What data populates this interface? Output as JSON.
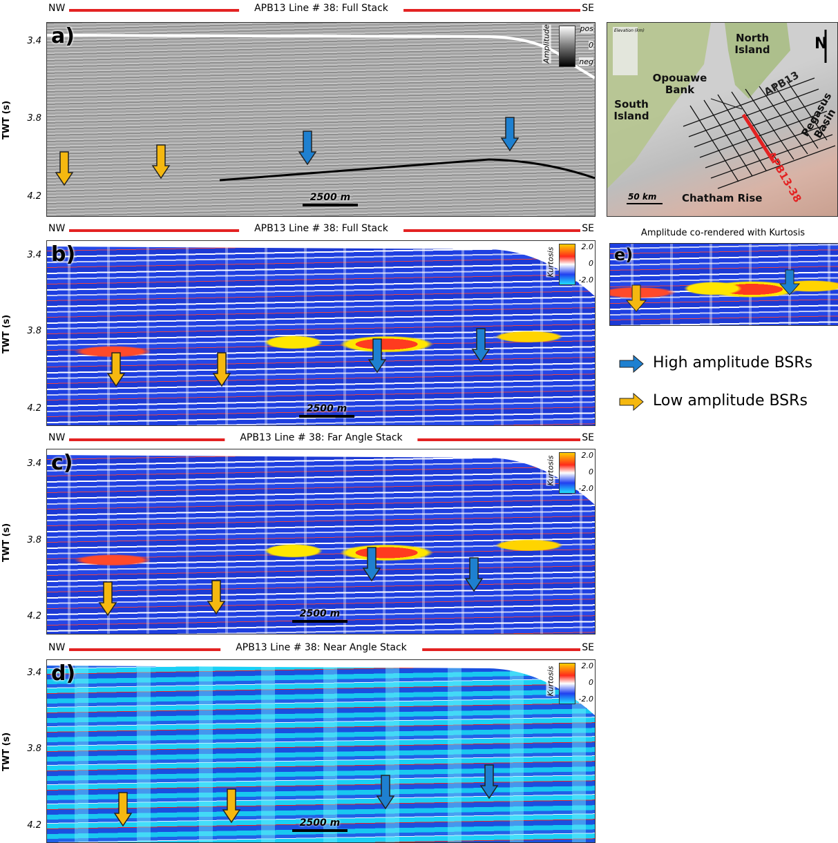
{
  "panels": [
    {
      "label": "a)",
      "header": {
        "left": "NW",
        "title": "APB13 Line # 38: Full Stack",
        "right": "SE"
      },
      "y_axis_label": "TWT (s)",
      "yticks": [
        "3.4",
        "3.8",
        "4.2"
      ],
      "scale_bar": "2500 m",
      "colorbar": {
        "title": "Amplitude",
        "labels": [
          "pos",
          "0",
          "neg"
        ]
      }
    },
    {
      "label": "b)",
      "header": {
        "left": "NW",
        "title": "APB13 Line # 38: Full Stack",
        "right": "SE"
      },
      "y_axis_label": "TWT (s)",
      "yticks": [
        "3.4",
        "3.8",
        "4.2"
      ],
      "scale_bar": "2500 m",
      "colorbar": {
        "title": "Kurtosis",
        "labels": [
          "2.0",
          "0",
          "-2.0"
        ]
      }
    },
    {
      "label": "c)",
      "header": {
        "left": "NW",
        "title": "APB13 Line # 38: Far Angle Stack",
        "right": "SE"
      },
      "y_axis_label": "TWT (s)",
      "yticks": [
        "3.4",
        "3.8",
        "4.2"
      ],
      "scale_bar": "2500 m",
      "colorbar": {
        "title": "Kurtosis",
        "labels": [
          "2.0",
          "0",
          "-2.0"
        ]
      }
    },
    {
      "label": "d)",
      "header": {
        "left": "NW",
        "title": "APB13 Line # 38: Near Angle Stack",
        "right": "SE"
      },
      "y_axis_label": "TWT (s)",
      "yticks": [
        "3.4",
        "3.8",
        "4.2"
      ],
      "scale_bar": "2500 m",
      "colorbar": {
        "title": "Kurtosis",
        "labels": [
          "2.0",
          "0",
          "-2.0"
        ]
      }
    }
  ],
  "map": {
    "labels": [
      "North Island",
      "Opouawe Bank",
      "APB13",
      "South Island",
      "Pegasus Basin",
      "APB13-38",
      "Chatham Rise"
    ],
    "scale_bar": "50 km",
    "north": "N",
    "elevation_title": "Elevation (km)"
  },
  "panel_e": {
    "title": "Amplitude co-rendered with Kurtosis",
    "label": "e)"
  },
  "legend": [
    "High amplitude BSRs",
    "Low amplitude BSRs"
  ]
}
